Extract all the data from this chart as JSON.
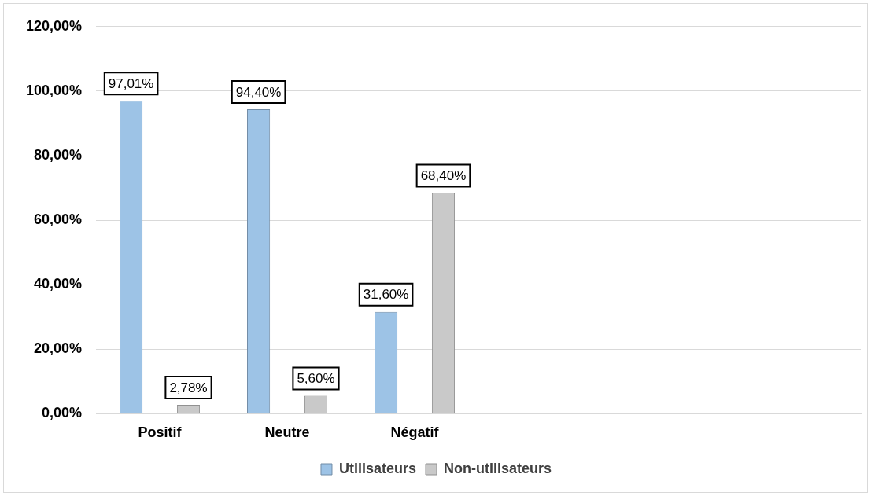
{
  "chart_data": {
    "type": "bar",
    "categories": [
      "Positif",
      "Neutre",
      "Négatif",
      null,
      null,
      null
    ],
    "series": [
      {
        "name": "Utilisateurs",
        "color": "#9dc3e6",
        "values": [
          97.01,
          94.4,
          31.6,
          null,
          null,
          null
        ],
        "value_labels": [
          "97,01%",
          "94,40%",
          "31,60%",
          null,
          null,
          null
        ]
      },
      {
        "name": "Non-utilisateurs",
        "color": "#c9c9c9",
        "values": [
          2.78,
          5.6,
          68.4,
          null,
          null,
          null
        ],
        "value_labels": [
          "2,78%",
          "5,60%",
          "68,40%",
          null,
          null,
          null
        ]
      }
    ],
    "ylim": [
      0,
      120
    ],
    "yticks": [
      {
        "value": 0,
        "label": "0,00%"
      },
      {
        "value": 20,
        "label": "20,00%"
      },
      {
        "value": 40,
        "label": "40,00%"
      },
      {
        "value": 60,
        "label": "60,00%"
      },
      {
        "value": 80,
        "label": "80,00%"
      },
      {
        "value": 100,
        "label": "100,00%"
      },
      {
        "value": 120,
        "label": "120,00%"
      }
    ],
    "grid": "y",
    "legend": "bottom"
  }
}
